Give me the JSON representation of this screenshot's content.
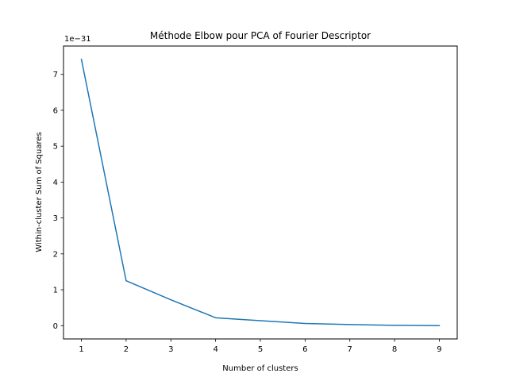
{
  "chart_data": {
    "type": "line",
    "title": "Méthode Elbow pour PCA of Fourier Descriptor",
    "xlabel": "Number of clusters",
    "ylabel": "Within-cluster Sum of Squares",
    "y_offset_label": "1e−31",
    "x": [
      1,
      2,
      3,
      4,
      5,
      6,
      7,
      8,
      9
    ],
    "series": [
      {
        "values": [
          7.42,
          1.25,
          0.72,
          0.22,
          0.14,
          0.06,
          0.03,
          0.01,
          0.0
        ],
        "color": "#1f77b4"
      }
    ],
    "xlim": [
      0.6,
      9.4
    ],
    "ylim": [
      -0.37,
      7.79
    ],
    "x_ticks": [
      1,
      2,
      3,
      4,
      5,
      6,
      7,
      8,
      9
    ],
    "x_tick_labels": [
      "1",
      "2",
      "3",
      "4",
      "5",
      "6",
      "7",
      "8",
      "9"
    ],
    "y_ticks": [
      0,
      1,
      2,
      3,
      4,
      5,
      6,
      7
    ],
    "y_tick_labels": [
      "0",
      "1",
      "2",
      "3",
      "4",
      "5",
      "6",
      "7"
    ],
    "grid": false,
    "legend": "none"
  }
}
